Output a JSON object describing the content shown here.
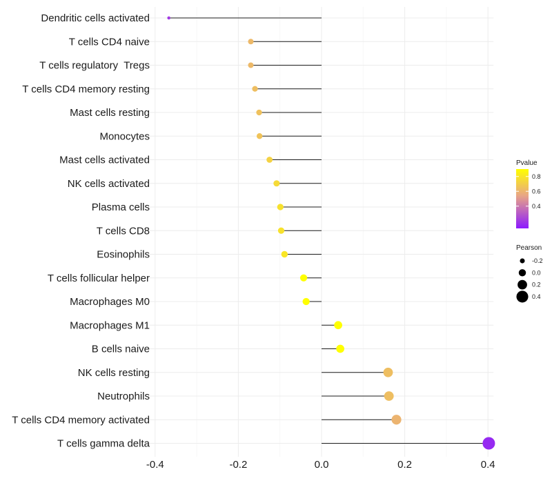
{
  "chart_data": {
    "type": "lollipop",
    "title": "",
    "xlabel": "",
    "ylabel": "",
    "xlim": [
      -0.4,
      0.4
    ],
    "xticks": [
      "-0.4",
      "-0.2",
      "0.0",
      "0.2",
      "0.4"
    ],
    "xtick_values": [
      -0.4,
      -0.2,
      0.0,
      0.2,
      0.4
    ],
    "categories": [
      "Dendritic cells activated",
      "T cells CD4 naive",
      "T cells regulatory  Tregs",
      "T cells CD4 memory resting",
      "Mast cells resting",
      "Monocytes",
      "Mast cells activated",
      "NK cells activated",
      "Plasma cells",
      "T cells CD8",
      "Eosinophils",
      "T cells follicular helper",
      "Macrophages M0",
      "Macrophages M1",
      "B cells naive",
      "NK cells resting",
      "Neutrophils",
      "T cells CD4 memory activated",
      "T cells gamma delta"
    ],
    "values": [
      -0.367,
      -0.17,
      -0.17,
      -0.16,
      -0.15,
      -0.149,
      -0.125,
      -0.108,
      -0.099,
      -0.097,
      -0.089,
      -0.043,
      -0.037,
      0.04,
      0.045,
      0.16,
      0.162,
      0.18,
      0.402
    ],
    "pvalues": [
      0.2,
      0.62,
      0.62,
      0.64,
      0.65,
      0.66,
      0.72,
      0.75,
      0.78,
      0.78,
      0.8,
      0.98,
      0.98,
      0.98,
      0.98,
      0.64,
      0.64,
      0.6,
      0.15
    ],
    "legends": {
      "pvalue": {
        "title": "Pvalue",
        "ticks": [
          "0.8",
          "0.6",
          "0.4"
        ],
        "tick_values": [
          0.8,
          0.6,
          0.4
        ],
        "range": [
          0.1,
          0.9
        ],
        "colors": [
          "#ffff00",
          "#e8a586",
          "#8c1aff"
        ]
      },
      "pearson": {
        "title": "Pearson",
        "labels": [
          "-0.2",
          "0.0",
          "0.2",
          "0.4"
        ],
        "values": [
          -0.2,
          0.0,
          0.2,
          0.4
        ]
      }
    },
    "grid": true,
    "legend_position": "right"
  }
}
